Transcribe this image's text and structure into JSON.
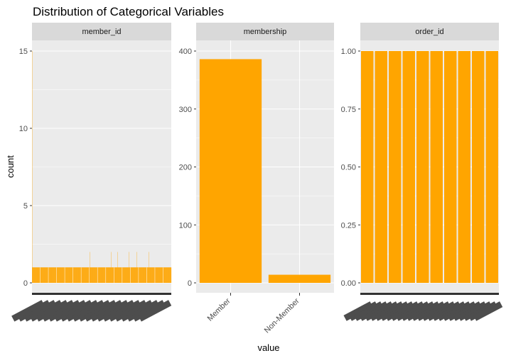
{
  "chart_data": {
    "type": "bar",
    "title": "Distribution of Categorical Variables",
    "xlabel": "value",
    "ylabel": "count",
    "bar_color": "#FFA500",
    "panel_background": "#EBEBEB",
    "strip_background": "#D9D9D9",
    "grid": true,
    "facets": [
      {
        "name": "member_id",
        "ylim": [
          0,
          15
        ],
        "y_ticks": [
          0,
          5,
          10,
          15
        ],
        "y_tick_labels": [
          "0",
          "5",
          "10",
          "15"
        ],
        "categories_overplotted": true,
        "values": [
          15,
          1,
          1,
          1,
          1,
          1,
          1,
          1,
          1,
          1,
          1,
          1,
          1,
          1,
          1,
          1,
          1,
          1,
          1,
          1,
          1,
          1,
          1,
          1,
          1,
          1,
          1,
          1,
          1,
          1,
          1,
          1,
          1,
          1,
          1,
          1,
          1,
          1,
          1,
          1,
          1,
          1,
          1,
          1,
          1,
          1,
          1,
          1,
          1,
          1,
          1,
          1,
          1,
          1,
          1,
          1,
          1,
          1,
          1,
          1,
          1,
          1,
          1,
          1,
          1,
          1,
          1,
          1,
          1,
          1,
          1,
          1,
          1,
          1,
          1,
          1,
          1,
          1,
          1,
          1,
          1,
          1,
          1,
          1,
          1,
          1,
          1,
          1,
          1,
          1,
          1,
          1,
          1,
          1,
          1,
          1,
          1,
          1,
          1,
          1,
          1,
          1,
          1,
          1,
          1,
          1,
          1,
          1,
          1,
          1,
          1,
          1,
          1,
          1,
          1,
          1,
          1,
          1,
          1,
          1,
          1,
          1,
          1,
          1,
          1,
          1,
          1,
          1,
          1,
          1,
          1,
          1,
          1,
          1,
          1,
          1,
          1,
          1,
          1,
          1,
          1,
          1,
          1,
          1,
          1,
          1,
          1,
          1,
          1,
          1,
          1,
          1,
          1,
          1,
          1,
          1,
          1,
          1,
          1,
          1,
          1,
          1,
          1,
          1,
          1,
          1,
          1,
          1,
          1,
          1,
          1,
          1,
          1,
          1,
          1,
          1,
          1,
          1,
          1,
          1,
          1,
          1,
          1,
          1,
          1,
          1,
          1,
          1,
          1,
          1,
          1,
          1,
          1,
          1,
          1,
          1,
          1,
          1,
          1,
          1,
          1,
          1,
          1,
          1,
          1,
          1,
          1,
          1,
          1,
          1,
          1,
          1,
          1,
          1,
          1,
          1,
          1,
          1,
          1,
          1,
          1,
          1,
          1,
          1,
          1,
          1,
          1,
          1,
          1,
          1,
          1,
          1,
          1,
          1,
          1,
          1,
          1,
          1,
          1,
          1,
          1,
          1,
          1,
          1,
          1,
          1,
          1,
          1,
          1,
          1,
          1,
          1,
          1,
          1,
          1,
          1,
          1,
          1,
          1,
          1,
          1,
          1,
          1,
          1,
          1,
          1,
          1,
          1,
          1,
          1,
          1,
          1,
          1,
          1,
          1,
          1,
          1,
          1,
          1,
          1,
          1,
          1,
          1,
          1,
          1,
          1,
          1,
          1,
          1,
          1,
          1,
          1,
          1,
          1,
          1,
          1,
          1,
          1,
          1,
          1,
          1,
          1,
          1,
          1,
          1,
          1,
          1,
          1,
          1,
          1,
          1,
          1,
          1,
          1,
          1,
          1,
          1,
          1,
          1,
          1,
          1,
          1,
          1,
          1,
          1,
          1,
          1,
          1,
          1,
          1,
          1,
          1,
          1,
          1,
          1,
          1,
          1,
          1,
          1,
          1,
          1,
          1,
          1,
          1,
          1,
          1,
          1,
          1,
          1,
          1,
          1,
          1,
          1,
          1,
          1,
          1,
          1,
          2,
          1,
          1,
          1,
          1,
          1,
          1,
          1,
          1,
          1,
          1,
          1,
          1,
          1,
          1,
          1,
          1,
          1,
          1,
          1,
          1,
          1,
          1,
          1,
          1,
          1,
          1,
          1,
          1,
          1,
          1,
          1,
          1,
          1,
          1,
          1,
          1,
          1,
          1,
          1,
          1,
          1,
          1,
          1,
          1,
          1,
          1,
          1,
          1,
          1,
          1,
          1,
          1,
          1,
          1,
          1,
          1,
          1,
          1,
          1,
          1,
          1,
          1,
          1,
          1,
          1,
          1,
          1,
          1,
          1,
          1,
          1,
          1,
          1,
          1,
          1,
          1,
          1,
          1,
          1,
          1,
          1,
          1,
          1,
          1,
          1,
          1,
          1,
          1,
          1,
          1,
          1,
          1,
          1,
          1,
          1,
          1,
          1,
          1,
          1,
          1,
          1,
          1,
          1,
          1,
          1,
          1,
          1,
          1,
          1,
          1,
          1,
          1,
          1,
          1,
          1,
          1,
          1,
          1,
          1,
          1,
          1,
          1,
          1,
          1,
          1,
          1,
          1,
          1,
          1,
          1,
          1,
          2,
          1,
          1,
          1,
          1,
          1,
          1,
          1,
          1,
          1,
          1,
          1,
          1,
          1,
          1,
          1,
          1,
          1,
          1,
          1,
          1,
          1,
          1,
          1,
          1,
          1,
          1,
          1,
          1,
          1,
          1,
          1,
          1,
          1,
          1,
          1,
          1,
          1,
          1,
          1,
          2,
          1,
          1,
          1,
          1,
          1,
          1,
          1,
          1,
          1,
          1,
          1,
          1,
          1,
          1,
          1,
          1,
          1,
          1,
          1,
          1,
          1,
          1,
          1,
          1,
          1,
          1,
          1,
          1,
          1,
          1,
          1,
          1,
          1,
          1,
          1,
          1,
          1,
          1,
          1,
          1,
          1,
          1,
          1,
          1,
          1,
          1,
          1,
          1,
          1,
          1,
          1,
          1,
          1,
          1,
          1,
          1,
          1,
          1,
          1,
          1,
          1,
          1,
          1,
          1,
          1,
          1,
          1,
          1,
          1,
          1,
          1,
          2,
          1,
          1,
          1,
          1,
          1,
          1,
          1,
          1,
          1,
          1,
          1,
          1,
          1,
          1,
          1,
          1,
          1,
          1,
          1,
          1,
          1,
          1,
          1,
          1,
          1,
          1,
          1,
          1,
          1,
          1,
          1,
          1,
          1,
          1,
          1,
          1,
          1,
          1,
          1,
          1,
          1,
          1,
          1,
          1,
          1,
          1,
          1,
          2,
          1,
          1,
          1,
          1,
          1,
          1,
          1,
          1,
          1,
          1,
          1,
          1,
          1,
          1,
          1,
          1,
          1,
          1,
          1,
          1,
          1,
          1,
          1,
          1,
          1,
          1,
          1,
          1,
          1,
          1,
          1,
          1,
          1,
          1,
          1,
          1,
          1,
          1,
          1,
          1,
          1,
          1,
          1,
          1,
          1,
          1,
          1,
          1,
          1,
          1,
          1,
          1,
          1,
          1,
          1,
          1,
          1,
          1,
          1,
          1,
          1,
          1,
          1,
          1,
          1,
          1,
          1,
          1,
          1,
          1,
          1,
          1,
          1,
          1,
          2,
          1,
          1,
          1,
          1,
          1,
          1,
          1,
          1,
          1,
          1,
          1,
          1,
          1,
          1,
          1,
          1,
          1,
          1,
          1,
          1,
          1,
          1,
          1,
          1,
          1,
          1,
          1,
          1,
          1,
          1,
          1,
          1,
          1,
          1,
          1,
          1,
          1,
          1,
          1,
          1,
          1,
          1,
          1,
          1,
          1,
          1,
          1,
          1,
          1,
          1,
          1,
          1,
          1,
          1,
          1,
          1,
          1,
          1,
          1,
          1,
          1,
          1,
          1,
          1,
          1,
          1,
          1,
          1,
          1,
          1,
          1,
          1,
          1,
          1,
          1,
          1,
          1,
          1,
          1,
          1,
          1,
          1,
          1,
          1,
          1,
          1,
          1,
          1,
          1,
          1,
          1,
          1,
          1,
          1,
          1,
          1,
          1,
          1,
          1,
          1,
          1,
          1,
          1,
          1,
          1,
          1,
          1,
          1,
          1,
          1,
          1,
          1,
          1,
          1,
          1,
          1,
          1,
          1,
          1,
          1,
          1,
          1,
          1,
          1,
          1,
          1,
          1,
          1,
          1,
          1,
          1,
          1,
          1,
          1,
          1,
          1,
          1,
          1
        ]
      },
      {
        "name": "membership",
        "ylim": [
          0,
          400
        ],
        "y_ticks": [
          0,
          100,
          200,
          300,
          400
        ],
        "y_tick_labels": [
          "0",
          "100",
          "200",
          "300",
          "400"
        ],
        "categories": [
          "Member",
          "Non-Member"
        ],
        "values": [
          386,
          14
        ]
      },
      {
        "name": "order_id",
        "ylim": [
          0,
          1
        ],
        "y_ticks": [
          0,
          0.25,
          0.5,
          0.75,
          1
        ],
        "y_tick_labels": [
          "0.00",
          "0.25",
          "0.50",
          "0.75",
          "1.00"
        ],
        "categories_overplotted": true,
        "bar_value": 1,
        "visible_bar_count": 10
      }
    ]
  }
}
